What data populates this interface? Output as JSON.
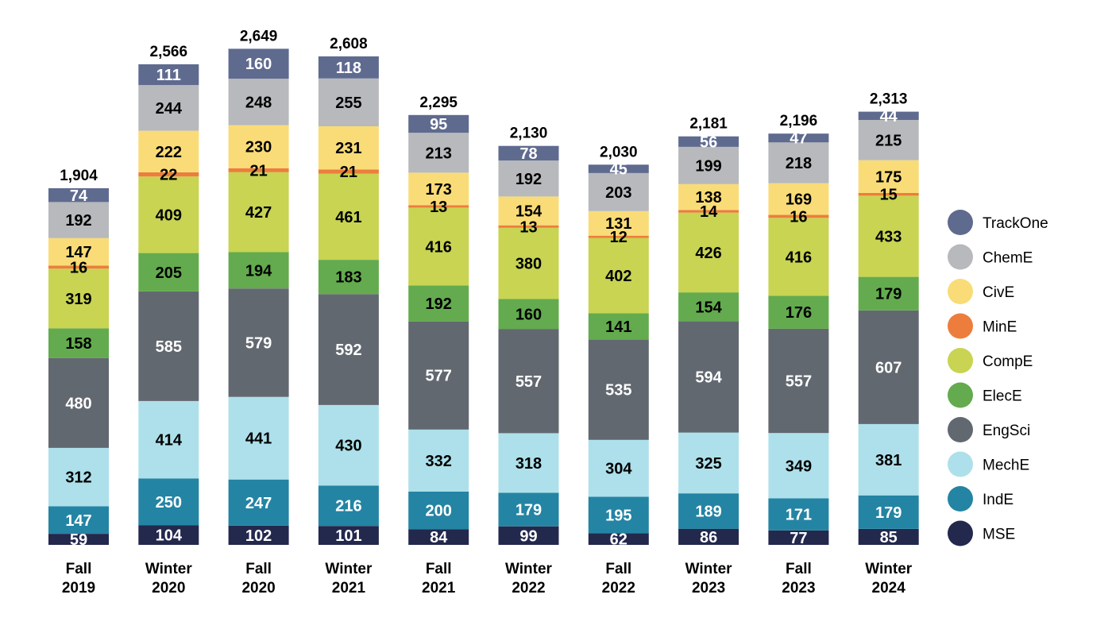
{
  "chart_data": {
    "type": "bar",
    "stacked": true,
    "title": "",
    "xlabel": "",
    "ylabel": "",
    "legend_position": "right",
    "grid": false,
    "categories": [
      [
        "Fall",
        "2019"
      ],
      [
        "Winter",
        "2020"
      ],
      [
        "Fall",
        "2020"
      ],
      [
        "Winter",
        "2021"
      ],
      [
        "Fall",
        "2021"
      ],
      [
        "Winter",
        "2022"
      ],
      [
        "Fall",
        "2022"
      ],
      [
        "Winter",
        "2023"
      ],
      [
        "Fall",
        "2023"
      ],
      [
        "Winter",
        "2024"
      ]
    ],
    "totals": [
      "1,904",
      "2,566",
      "2,649",
      "2,608",
      "2,295",
      "2,130",
      "2,030",
      "2,181",
      "2,196",
      "2,313"
    ],
    "series": [
      {
        "name": "MSE",
        "color": "#23284d",
        "label_color": "#ffffff",
        "values": [
          59,
          104,
          102,
          101,
          84,
          99,
          62,
          86,
          77,
          85
        ]
      },
      {
        "name": "IndE",
        "color": "#2484a3",
        "label_color": "#ffffff",
        "values": [
          147,
          250,
          247,
          216,
          200,
          179,
          195,
          189,
          171,
          179
        ]
      },
      {
        "name": "MechE",
        "color": "#ade0ea",
        "label_color": "#000000",
        "values": [
          312,
          414,
          441,
          430,
          332,
          318,
          304,
          325,
          349,
          381
        ]
      },
      {
        "name": "EngSci",
        "color": "#626870",
        "label_color": "#ffffff",
        "values": [
          480,
          585,
          579,
          592,
          577,
          557,
          535,
          594,
          557,
          607
        ]
      },
      {
        "name": "ElecE",
        "color": "#63ab4e",
        "label_color": "#000000",
        "values": [
          158,
          205,
          194,
          183,
          192,
          160,
          141,
          154,
          176,
          179
        ]
      },
      {
        "name": "CompE",
        "color": "#c8d452",
        "label_color": "#000000",
        "values": [
          319,
          409,
          427,
          461,
          416,
          380,
          402,
          426,
          416,
          433
        ]
      },
      {
        "name": "MinE",
        "color": "#ed7d3c",
        "label_color": "#000000",
        "values": [
          16,
          22,
          21,
          21,
          13,
          13,
          12,
          14,
          16,
          15
        ]
      },
      {
        "name": "CivE",
        "color": "#f9dc77",
        "label_color": "#000000",
        "values": [
          147,
          222,
          230,
          231,
          173,
          154,
          131,
          138,
          169,
          175
        ]
      },
      {
        "name": "ChemE",
        "color": "#b7b9bc",
        "label_color": "#000000",
        "values": [
          192,
          244,
          248,
          255,
          213,
          192,
          203,
          199,
          218,
          215
        ]
      },
      {
        "name": "TrackOne",
        "color": "#5f6a8f",
        "label_color": "#ffffff",
        "values": [
          74,
          111,
          160,
          118,
          95,
          78,
          45,
          56,
          47,
          44
        ]
      }
    ]
  }
}
